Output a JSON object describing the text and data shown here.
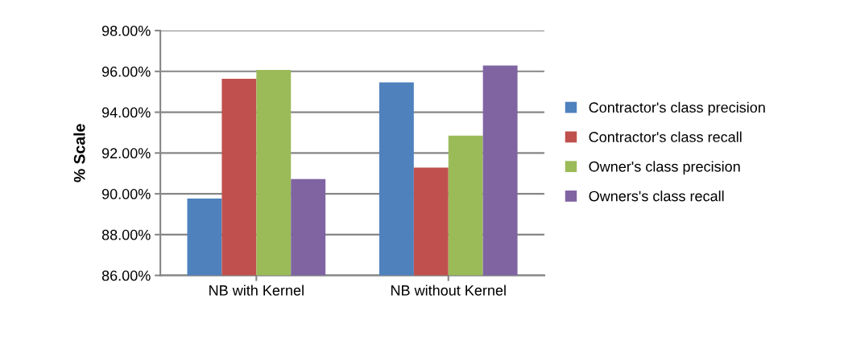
{
  "chart_data": {
    "type": "bar",
    "ylabel": "% Scale",
    "categories": [
      "NB with Kernel",
      "NB without Kernel"
    ],
    "series": [
      {
        "name": "Contractor's class precision",
        "color": "#4f81bd",
        "values": [
          89.77,
          95.46
        ]
      },
      {
        "name": "Contractor's class recall",
        "color": "#c0504d",
        "values": [
          95.64,
          91.28
        ]
      },
      {
        "name": "Owner's class precision",
        "color": "#9bbb59",
        "values": [
          96.07,
          92.85
        ]
      },
      {
        "name": "Owners's class recall",
        "color": "#8064a2",
        "values": [
          90.72,
          96.29
        ]
      }
    ],
    "ylim": [
      86,
      98
    ],
    "yticks": [
      {
        "value": 86,
        "label": "86.00%"
      },
      {
        "value": 88,
        "label": "88.00%"
      },
      {
        "value": 90,
        "label": "90.00%"
      },
      {
        "value": 92,
        "label": "92.00%"
      },
      {
        "value": 94,
        "label": "94.00%"
      },
      {
        "value": 96,
        "label": "96.00%"
      },
      {
        "value": 98,
        "label": "98.00%"
      }
    ],
    "grid": "y",
    "legend": "right"
  }
}
